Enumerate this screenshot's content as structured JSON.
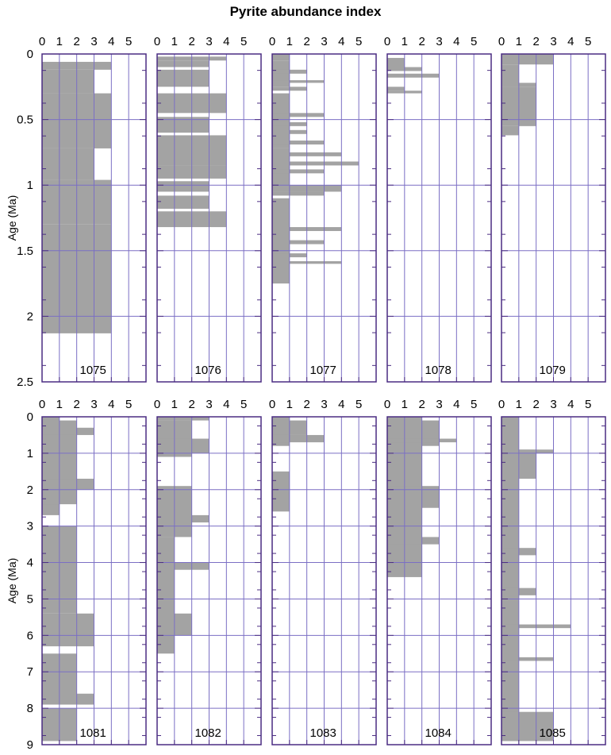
{
  "chart_data": {
    "type": "bar",
    "title": "Pyrite abundance index",
    "xlabel": "",
    "ylabel": "Age (Ma)",
    "x_ticks": [
      "0",
      "1",
      "2",
      "3",
      "4",
      "5"
    ],
    "xlim": [
      0,
      6
    ],
    "bar_color": "#a3a3a3",
    "axis_color": "#4a2c82",
    "grid_color": "#7b6fc4",
    "rows": [
      {
        "ylim": [
          0,
          2.5
        ],
        "y_ticks": [
          "0",
          "0.5",
          "1",
          "1.5",
          "2",
          "2.5"
        ],
        "panels": [
          {
            "site": "1075",
            "intervals": [
              [
                0.06,
                0.12,
                4
              ],
              [
                0.12,
                0.3,
                3
              ],
              [
                0.3,
                0.72,
                4
              ],
              [
                0.72,
                0.96,
                3
              ],
              [
                0.96,
                1.3,
                4
              ],
              [
                1.3,
                2.13,
                4
              ]
            ]
          },
          {
            "site": "1076",
            "intervals": [
              [
                0.02,
                0.05,
                4
              ],
              [
                0.05,
                0.1,
                3
              ],
              [
                0.12,
                0.25,
                3
              ],
              [
                0.3,
                0.45,
                4
              ],
              [
                0.48,
                0.6,
                3
              ],
              [
                0.62,
                0.85,
                4
              ],
              [
                0.85,
                0.95,
                4
              ],
              [
                0.97,
                1.05,
                3
              ],
              [
                1.08,
                1.18,
                3
              ],
              [
                1.2,
                1.32,
                4
              ]
            ]
          },
          {
            "site": "1077",
            "intervals": [
              [
                0.0,
                0.05,
                1
              ],
              [
                0.05,
                0.25,
                1
              ],
              [
                0.12,
                0.15,
                2
              ],
              [
                0.2,
                0.22,
                3
              ],
              [
                0.25,
                0.28,
                2
              ],
              [
                0.3,
                0.72,
                1
              ],
              [
                0.45,
                0.48,
                3
              ],
              [
                0.52,
                0.55,
                2
              ],
              [
                0.58,
                0.61,
                2
              ],
              [
                0.66,
                0.69,
                3
              ],
              [
                0.72,
                1.0,
                1
              ],
              [
                0.75,
                0.78,
                4
              ],
              [
                0.82,
                0.85,
                5
              ],
              [
                0.88,
                0.91,
                3
              ],
              [
                1.0,
                1.05,
                4
              ],
              [
                1.05,
                1.08,
                3
              ],
              [
                1.1,
                1.75,
                1
              ],
              [
                1.32,
                1.35,
                4
              ],
              [
                1.42,
                1.45,
                3
              ],
              [
                1.52,
                1.55,
                2
              ],
              [
                1.58,
                1.6,
                4
              ]
            ]
          },
          {
            "site": "1078",
            "intervals": [
              [
                0.03,
                0.12,
                1
              ],
              [
                0.1,
                0.13,
                2
              ],
              [
                0.15,
                0.18,
                3
              ],
              [
                0.25,
                0.28,
                1
              ],
              [
                0.28,
                0.3,
                2
              ]
            ]
          },
          {
            "site": "1079",
            "intervals": [
              [
                0.0,
                0.08,
                3
              ],
              [
                0.08,
                0.25,
                1
              ],
              [
                0.22,
                0.25,
                2
              ],
              [
                0.25,
                0.55,
                2
              ],
              [
                0.55,
                0.62,
                1
              ]
            ]
          }
        ]
      },
      {
        "ylim": [
          0,
          9
        ],
        "y_ticks": [
          "0",
          "1",
          "2",
          "3",
          "4",
          "5",
          "6",
          "7",
          "8",
          "9"
        ],
        "panels": [
          {
            "site": "1081",
            "intervals": [
              [
                0.0,
                2.7,
                1
              ],
              [
                0.1,
                1.2,
                2
              ],
              [
                0.3,
                0.5,
                3
              ],
              [
                1.0,
                2.4,
                2
              ],
              [
                1.7,
                2.0,
                3
              ],
              [
                3.0,
                5.4,
                2
              ],
              [
                5.4,
                6.3,
                3
              ],
              [
                6.5,
                7.7,
                2
              ],
              [
                7.6,
                7.9,
                3
              ],
              [
                8.0,
                8.9,
                2
              ]
            ]
          },
          {
            "site": "1082",
            "intervals": [
              [
                0.0,
                0.1,
                3
              ],
              [
                0.1,
                1.1,
                2
              ],
              [
                0.6,
                1.0,
                3
              ],
              [
                1.9,
                3.3,
                2
              ],
              [
                2.7,
                2.9,
                3
              ],
              [
                3.3,
                6.5,
                1
              ],
              [
                4.0,
                4.2,
                3
              ],
              [
                5.4,
                6.0,
                2
              ]
            ]
          },
          {
            "site": "1083",
            "intervals": [
              [
                0.0,
                0.8,
                1
              ],
              [
                0.1,
                0.5,
                2
              ],
              [
                0.5,
                0.7,
                3
              ],
              [
                1.5,
                2.6,
                1
              ]
            ]
          },
          {
            "site": "1084",
            "intervals": [
              [
                0.0,
                4.4,
                2
              ],
              [
                0.1,
                0.8,
                3
              ],
              [
                0.6,
                0.7,
                4
              ],
              [
                1.9,
                2.5,
                3
              ],
              [
                3.3,
                3.5,
                3
              ]
            ]
          },
          {
            "site": "1085",
            "intervals": [
              [
                0.0,
                8.9,
                1
              ],
              [
                0.9,
                1.7,
                2
              ],
              [
                0.9,
                1.0,
                3
              ],
              [
                3.6,
                3.8,
                2
              ],
              [
                4.7,
                4.9,
                2
              ],
              [
                5.7,
                5.8,
                4
              ],
              [
                6.6,
                6.7,
                3
              ],
              [
                8.1,
                8.9,
                3
              ]
            ]
          }
        ]
      }
    ]
  }
}
